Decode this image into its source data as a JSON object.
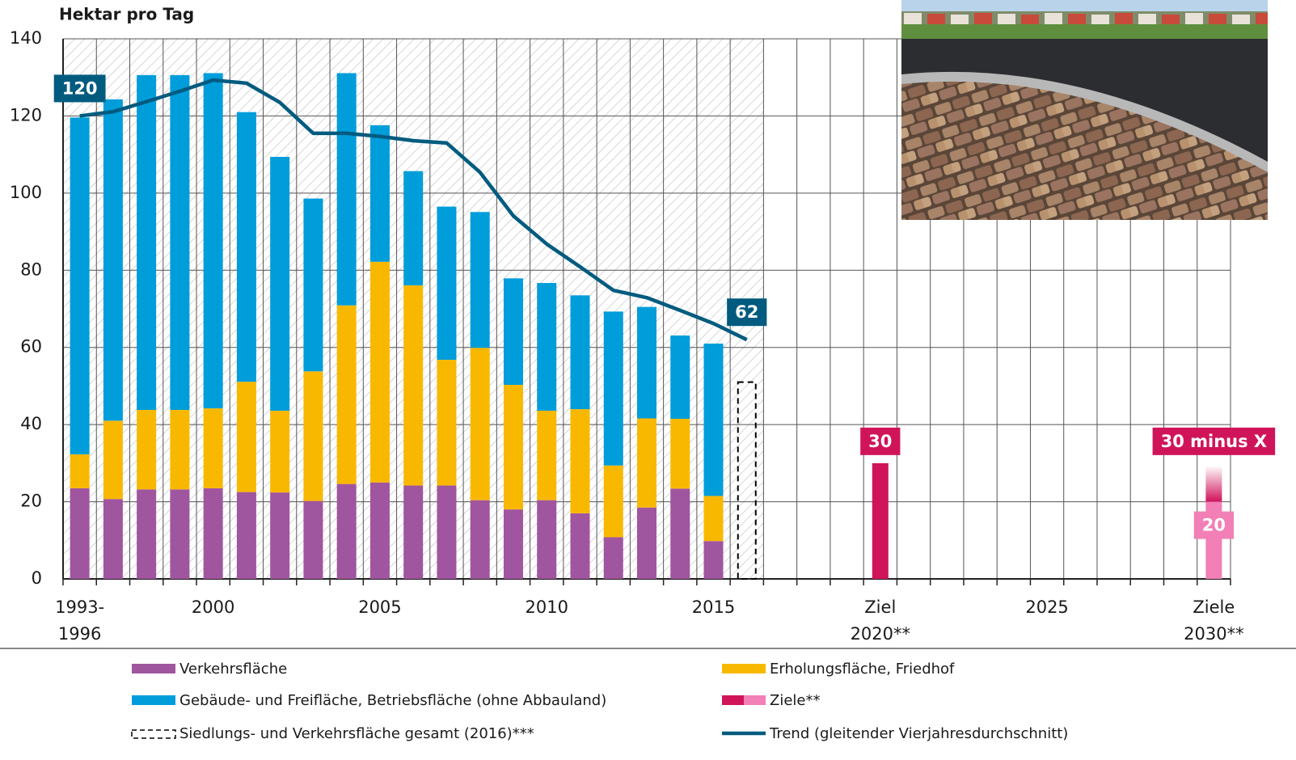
{
  "chart_data": {
    "type": "bar",
    "stacked": true,
    "y_label": "Hektar pro Tag",
    "categories": [
      "1993-\n1996",
      null,
      null,
      null,
      "2000",
      null,
      null,
      null,
      null,
      "2005",
      null,
      null,
      null,
      null,
      "2010",
      null,
      null,
      null,
      null,
      "2015",
      null,
      null,
      null,
      null,
      "Ziel\n2020**",
      null,
      null,
      null,
      null,
      "2025",
      null,
      null,
      null,
      null,
      "Ziele\n2030**"
    ],
    "ylim": [
      0,
      140
    ],
    "yticks": [
      0,
      20,
      40,
      60,
      80,
      100,
      120,
      140
    ],
    "grid": true,
    "series": [
      {
        "name": "Verkehrsfläche",
        "color": "#a0559f",
        "values": [
          23.5,
          20.7,
          23.2,
          23.2,
          23.5,
          22.5,
          22.4,
          20.2,
          24.6,
          25.0,
          24.2,
          24.2,
          20.4,
          18.0,
          20.4,
          17.0,
          10.8,
          18.5,
          23.4,
          9.8,
          null,
          null,
          null,
          null,
          null,
          null,
          null,
          null,
          null,
          null,
          null,
          null,
          null,
          null,
          null
        ]
      },
      {
        "name": "Erholungsfläche, Friedhof",
        "color": "#f9b800",
        "values": [
          8.8,
          20.3,
          20.6,
          20.6,
          20.7,
          28.6,
          21.2,
          33.6,
          46.3,
          57.2,
          51.9,
          32.6,
          39.5,
          32.3,
          23.2,
          27.0,
          18.6,
          23.1,
          18.1,
          11.7,
          null,
          null,
          null,
          null,
          null,
          null,
          null,
          null,
          null,
          null,
          null,
          null,
          null,
          null,
          null
        ]
      },
      {
        "name": "Gebäude- und Freifläche, Betriebsfläche (ohne Abbauland)",
        "color": "#009ddb",
        "values": [
          87.3,
          83.3,
          86.8,
          86.8,
          86.9,
          69.9,
          65.8,
          44.8,
          60.2,
          35.4,
          29.6,
          39.7,
          35.2,
          27.6,
          33.1,
          29.5,
          39.9,
          28.9,
          21.6,
          39.5,
          null,
          null,
          null,
          null,
          null,
          null,
          null,
          null,
          null,
          null,
          null,
          null,
          null,
          null,
          null
        ]
      },
      {
        "name": "Siedlungs- und Verkehrsfläche gesamt (2016)***",
        "type": "dashed-bar",
        "color": "#000000",
        "values": [
          null,
          null,
          null,
          null,
          null,
          null,
          null,
          null,
          null,
          null,
          null,
          null,
          null,
          null,
          null,
          null,
          null,
          null,
          null,
          null,
          51,
          null,
          null,
          null,
          null,
          null,
          null,
          null,
          null,
          null,
          null,
          null,
          null,
          null,
          null
        ]
      },
      {
        "name": "Ziele**",
        "type": "target",
        "colors": [
          "#d0145a",
          "#f27fb6"
        ],
        "values": [
          null,
          null,
          null,
          null,
          null,
          null,
          null,
          null,
          null,
          null,
          null,
          null,
          null,
          null,
          null,
          null,
          null,
          null,
          null,
          null,
          null,
          null,
          null,
          null,
          30,
          null,
          null,
          null,
          null,
          null,
          null,
          null,
          null,
          null,
          20
        ],
        "value_labels": [
          null,
          null,
          null,
          null,
          null,
          null,
          null,
          null,
          null,
          null,
          null,
          null,
          null,
          null,
          null,
          null,
          null,
          null,
          null,
          null,
          null,
          null,
          null,
          null,
          "30",
          null,
          null,
          null,
          null,
          null,
          null,
          null,
          null,
          null,
          "20"
        ]
      },
      {
        "name": "Trend (gleitender Vierjahresdurchschnitt)",
        "type": "line",
        "color": "#005b7f",
        "values": [
          120,
          121.1,
          123.7,
          126.4,
          129.3,
          128.5,
          123.5,
          115.5,
          115.5,
          114.7,
          113.6,
          113.0,
          105.4,
          94.1,
          86.8,
          80.9,
          74.8,
          72.9,
          69.6,
          66.2,
          62,
          null,
          null,
          null,
          null,
          null,
          null,
          null,
          null,
          null,
          null,
          null,
          null,
          null,
          null
        ],
        "value_labels": [
          "120",
          null,
          null,
          null,
          null,
          null,
          null,
          null,
          null,
          null,
          null,
          null,
          null,
          null,
          null,
          null,
          null,
          null,
          null,
          null,
          "62",
          null,
          null,
          null,
          null,
          null,
          null,
          null,
          null,
          null,
          null,
          null,
          null,
          null,
          null
        ]
      }
    ],
    "annotations": [
      {
        "text": "30 minus X"
      }
    ]
  }
}
